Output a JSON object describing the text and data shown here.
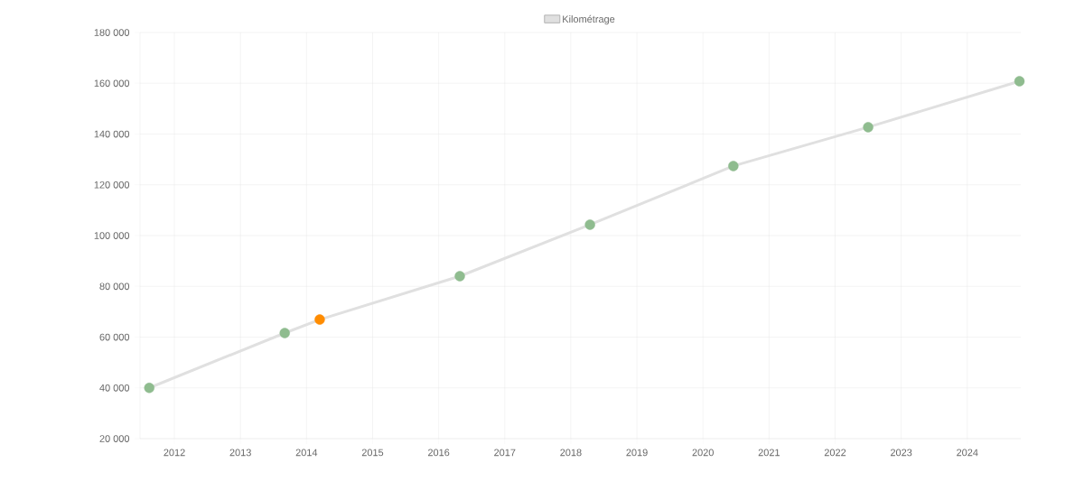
{
  "chart_data": {
    "type": "line",
    "x": [
      2011.62,
      2013.67,
      2014.2,
      2016.32,
      2018.29,
      2020.46,
      2022.5,
      2024.79
    ],
    "series": [
      {
        "name": "Kilométrage",
        "color": "#e0e0e0",
        "values": [
          40000,
          61600,
          66900,
          84000,
          104300,
          127400,
          142700,
          160800
        ],
        "colors": [
          "#8fbc8f",
          "#8fbc8f",
          "#ff8c00",
          "#8fbc8f",
          "#8fbc8f",
          "#8fbc8f",
          "#8fbc8f",
          "#8fbc8f"
        ]
      }
    ],
    "xlim": [
      2011.48,
      2024.81
    ],
    "ylim": [
      20000,
      180000
    ],
    "xticks": [
      2012,
      2013,
      2014,
      2015,
      2016,
      2017,
      2018,
      2019,
      2020,
      2021,
      2022,
      2023,
      2024
    ],
    "yticks": [
      {
        "value": 20000,
        "label": "20 000"
      },
      {
        "value": 40000,
        "label": "40 000"
      },
      {
        "value": 60000,
        "label": "60 000"
      },
      {
        "value": 80000,
        "label": "80 000"
      },
      {
        "value": 100000,
        "label": "100 000"
      },
      {
        "value": 120000,
        "label": "120 000"
      },
      {
        "value": 140000,
        "label": "140 000"
      },
      {
        "value": 160000,
        "label": "160 000"
      },
      {
        "value": 180000,
        "label": "180 000"
      }
    ],
    "grid": true,
    "legend": "top",
    "marker": "circle"
  }
}
